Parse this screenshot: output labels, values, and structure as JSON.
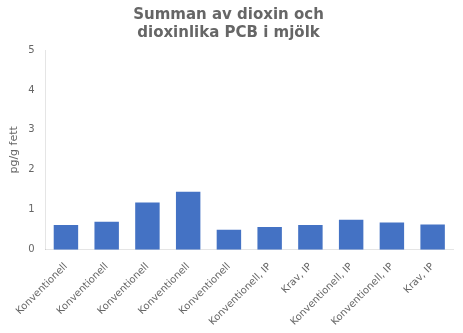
{
  "chart_data": {
    "type": "bar",
    "title": "Summan av dioxin och\ndioxinlika PCB i mjölk",
    "ylabel": "pg/g fett",
    "categories": [
      "Konventionell",
      "Konventionell",
      "Konventionell",
      "Konventionell",
      "Konventionell",
      "Konventionell, IP",
      "Krav, IP",
      "Konventionell, IP",
      "Konventionell, IP",
      "Krav, IP"
    ],
    "values": [
      0.62,
      0.7,
      1.18,
      1.45,
      0.5,
      0.57,
      0.62,
      0.75,
      0.68,
      0.63
    ],
    "color": "#4472C4",
    "ylim": [
      0,
      5
    ],
    "yticks": [
      0,
      1,
      2,
      3,
      4,
      5
    ],
    "grid": false
  }
}
